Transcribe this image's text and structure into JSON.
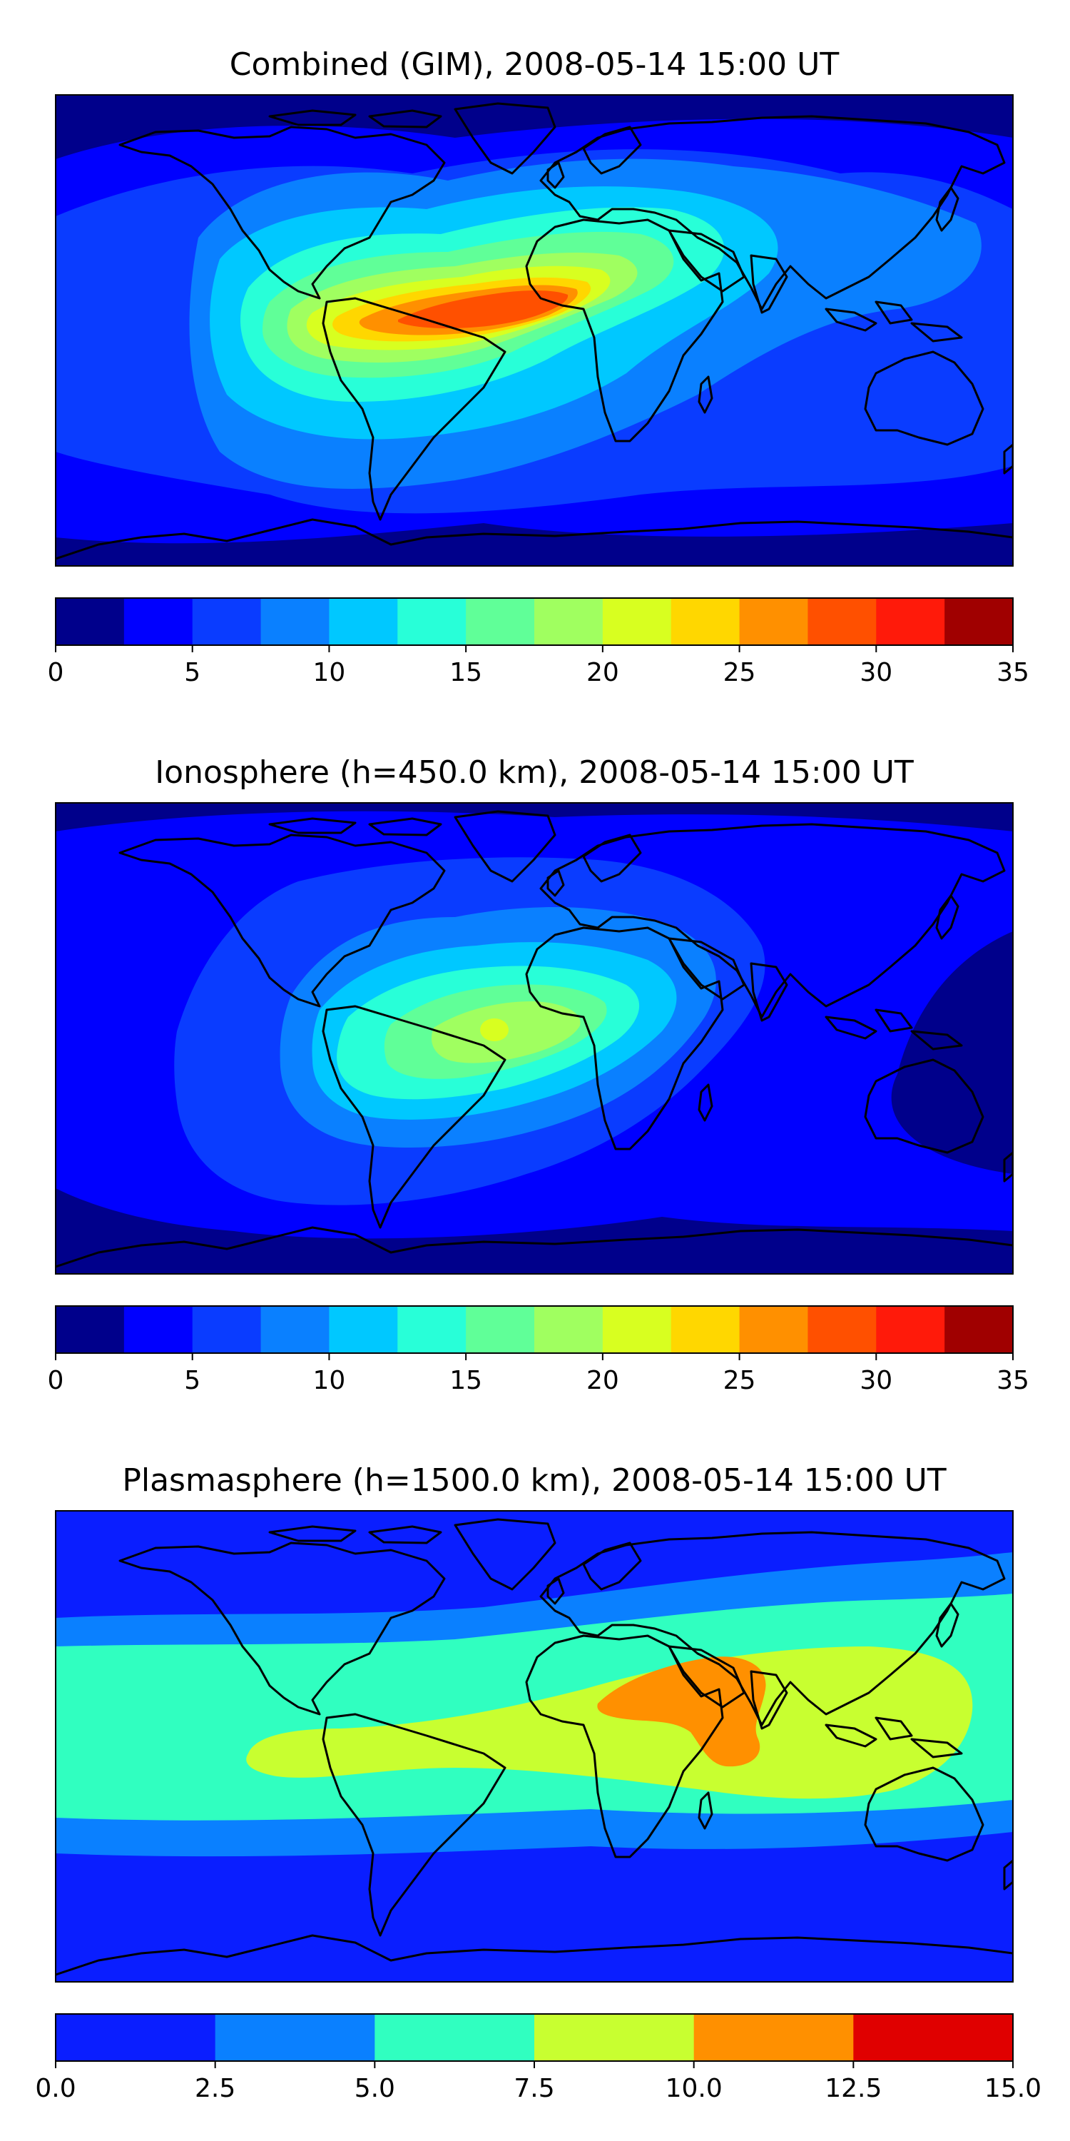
{
  "chart_data": [
    {
      "type": "contour-map",
      "title": "Combined (GIM), 2008-05-14 15:00 UT",
      "colorbar": {
        "levels": [
          0,
          2.5,
          5,
          7.5,
          10,
          12.5,
          15,
          17.5,
          20,
          22.5,
          25,
          27.5,
          30,
          32.5,
          35
        ],
        "tick_values": [
          0,
          5,
          10,
          15,
          20,
          25,
          30,
          35
        ],
        "tick_labels": [
          "0",
          "5",
          "10",
          "15",
          "20",
          "25",
          "30",
          "35"
        ],
        "colors": [
          "#00008b",
          "#0000ff",
          "#0a3cff",
          "#0a80ff",
          "#00c8ff",
          "#28ffd8",
          "#60ff98",
          "#a0ff60",
          "#d8ff20",
          "#ffd700",
          "#ff9000",
          "#ff5000",
          "#ff1a0a",
          "#a00000"
        ]
      },
      "features": [
        {
          "name": "equatorial Atlantic / Africa maximum",
          "lon": -15,
          "lat": 3,
          "max_value": 30
        },
        {
          "name": "polar regions minimum",
          "value_range": [
            0,
            5
          ]
        }
      ]
    },
    {
      "type": "contour-map",
      "title": "Ionosphere  (h=450.0 km), 2008-05-14 15:00 UT",
      "colorbar": {
        "levels": [
          0,
          2.5,
          5,
          7.5,
          10,
          12.5,
          15,
          17.5,
          20,
          22.5,
          25,
          27.5,
          30,
          32.5,
          35
        ],
        "tick_values": [
          0,
          5,
          10,
          15,
          20,
          25,
          30,
          35
        ],
        "tick_labels": [
          "0",
          "5",
          "10",
          "15",
          "20",
          "25",
          "30",
          "35"
        ],
        "colors": [
          "#00008b",
          "#0000ff",
          "#0a3cff",
          "#0a80ff",
          "#00c8ff",
          "#28ffd8",
          "#60ff98",
          "#a0ff60",
          "#d8ff20",
          "#ffd700",
          "#ff9000",
          "#ff5000",
          "#ff1a0a",
          "#a00000"
        ]
      },
      "features": [
        {
          "name": "equatorial Atlantic / Africa maximum",
          "lon": -10,
          "lat": 0,
          "max_value": 22.5
        },
        {
          "name": "background",
          "value_range": [
            0,
            7.5
          ]
        }
      ]
    },
    {
      "type": "contour-map",
      "title": "Plasmasphere (h=1500.0 km), 2008-05-14 15:00 UT",
      "colorbar": {
        "levels": [
          0.0,
          2.5,
          5.0,
          7.5,
          10.0,
          12.5,
          15.0
        ],
        "tick_values": [
          0.0,
          2.5,
          5.0,
          7.5,
          10.0,
          12.5,
          15.0
        ],
        "tick_labels": [
          "0.0",
          "2.5",
          "5.0",
          "7.5",
          "10.0",
          "12.5",
          "15.0"
        ],
        "colors": [
          "#0a1eff",
          "#0a80ff",
          "#30ffc0",
          "#c8ff30",
          "#ff9000",
          "#e00000"
        ]
      },
      "features": [
        {
          "name": "Arabia / Indian Ocean maximum",
          "lon": 50,
          "lat": 12,
          "max_value": 12.5
        },
        {
          "name": "low-latitude band",
          "value_range": [
            5,
            10
          ]
        },
        {
          "name": "high latitudes",
          "value_range": [
            0,
            2.5
          ]
        }
      ]
    }
  ]
}
